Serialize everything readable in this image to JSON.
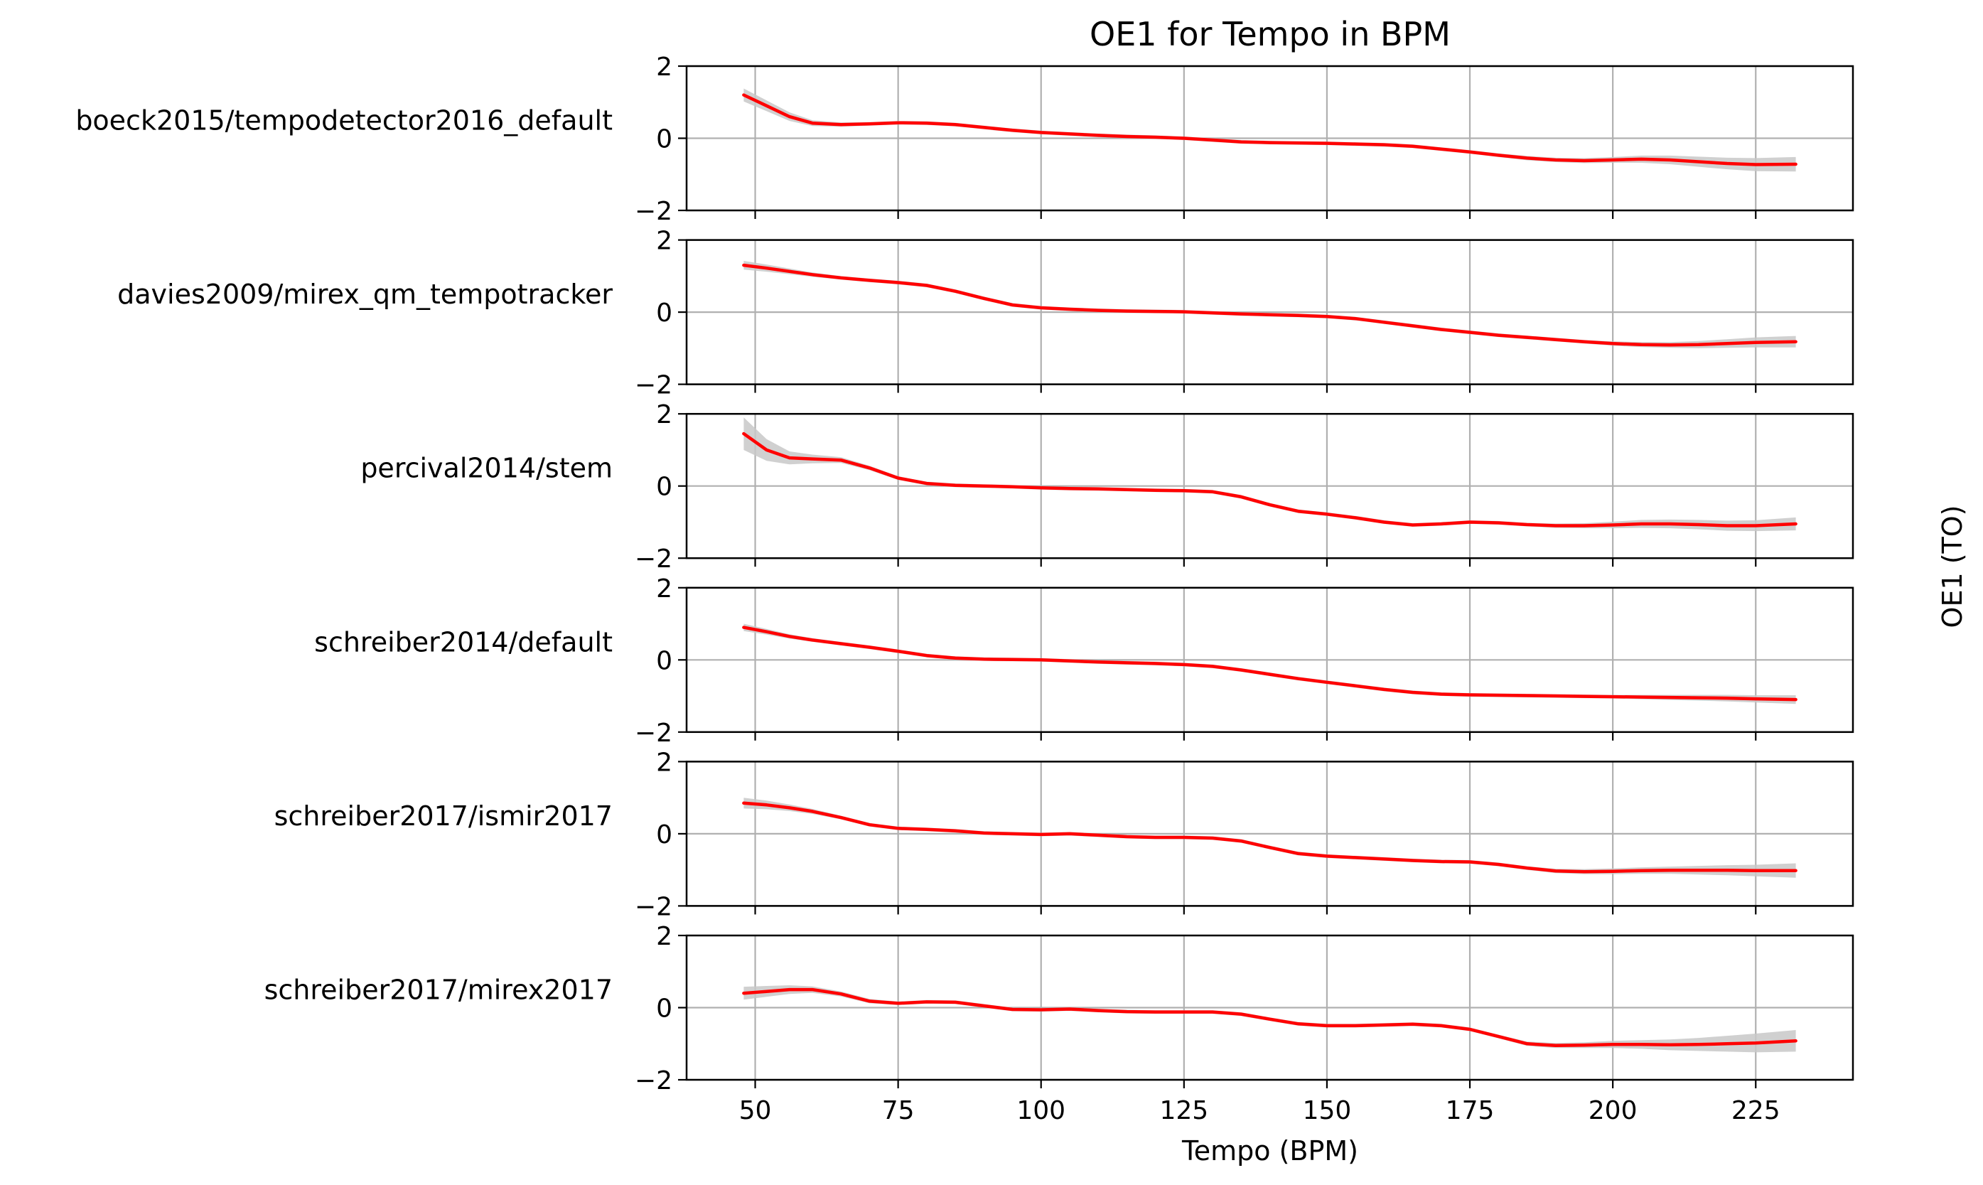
{
  "chart_data": {
    "type": "line",
    "title": "OE1 for Tempo in BPM",
    "xlabel": "Tempo (BPM)",
    "ylabel": "OE1 (TO)",
    "xlim": [
      38,
      242
    ],
    "ylim": [
      -2,
      2
    ],
    "xticks": [
      50,
      75,
      100,
      125,
      150,
      175,
      200,
      225
    ],
    "yticks": [
      2,
      0,
      -2
    ],
    "ytick_labels": [
      "2",
      "0",
      "−2"
    ],
    "grid": true,
    "line_color": "#ff0000",
    "band_color": "#c8c8c8",
    "x": [
      48,
      52,
      56,
      60,
      65,
      70,
      75,
      80,
      85,
      90,
      95,
      100,
      105,
      110,
      115,
      120,
      125,
      130,
      135,
      140,
      145,
      150,
      155,
      160,
      165,
      170,
      175,
      180,
      185,
      190,
      195,
      200,
      205,
      210,
      215,
      220,
      225,
      232
    ],
    "series": [
      {
        "name": "boeck2015/tempodetector2016_default",
        "values": [
          1.2,
          0.9,
          0.6,
          0.42,
          0.38,
          0.4,
          0.43,
          0.42,
          0.38,
          0.3,
          0.22,
          0.16,
          0.12,
          0.08,
          0.05,
          0.03,
          0.0,
          -0.05,
          -0.1,
          -0.12,
          -0.13,
          -0.14,
          -0.16,
          -0.18,
          -0.22,
          -0.3,
          -0.38,
          -0.47,
          -0.55,
          -0.6,
          -0.62,
          -0.6,
          -0.58,
          -0.6,
          -0.65,
          -0.7,
          -0.73,
          -0.72
        ],
        "band": [
          0.18,
          0.15,
          0.12,
          0.08,
          0.06,
          0.05,
          0.05,
          0.05,
          0.05,
          0.05,
          0.05,
          0.05,
          0.05,
          0.05,
          0.05,
          0.05,
          0.05,
          0.05,
          0.05,
          0.05,
          0.05,
          0.05,
          0.05,
          0.05,
          0.05,
          0.05,
          0.05,
          0.05,
          0.06,
          0.06,
          0.07,
          0.08,
          0.1,
          0.12,
          0.14,
          0.16,
          0.18,
          0.2
        ]
      },
      {
        "name": "davies2009/mirex_qm_tempotracker",
        "values": [
          1.3,
          1.22,
          1.13,
          1.04,
          0.95,
          0.88,
          0.82,
          0.74,
          0.58,
          0.38,
          0.2,
          0.12,
          0.08,
          0.05,
          0.03,
          0.02,
          0.01,
          -0.02,
          -0.05,
          -0.07,
          -0.09,
          -0.12,
          -0.18,
          -0.28,
          -0.38,
          -0.48,
          -0.56,
          -0.64,
          -0.7,
          -0.76,
          -0.82,
          -0.87,
          -0.9,
          -0.91,
          -0.9,
          -0.87,
          -0.84,
          -0.82
        ],
        "band": [
          0.12,
          0.1,
          0.08,
          0.06,
          0.05,
          0.05,
          0.05,
          0.05,
          0.05,
          0.05,
          0.05,
          0.05,
          0.05,
          0.05,
          0.05,
          0.05,
          0.05,
          0.05,
          0.05,
          0.05,
          0.05,
          0.05,
          0.05,
          0.05,
          0.05,
          0.05,
          0.05,
          0.05,
          0.05,
          0.05,
          0.05,
          0.06,
          0.07,
          0.08,
          0.1,
          0.12,
          0.14,
          0.16
        ]
      },
      {
        "name": "percival2014/stem",
        "values": [
          1.45,
          1.0,
          0.78,
          0.75,
          0.72,
          0.5,
          0.22,
          0.07,
          0.02,
          0.0,
          -0.02,
          -0.05,
          -0.07,
          -0.08,
          -0.1,
          -0.12,
          -0.13,
          -0.16,
          -0.3,
          -0.52,
          -0.7,
          -0.78,
          -0.88,
          -1.0,
          -1.08,
          -1.05,
          -1.0,
          -1.02,
          -1.07,
          -1.1,
          -1.1,
          -1.08,
          -1.05,
          -1.05,
          -1.07,
          -1.1,
          -1.1,
          -1.05
        ],
        "band": [
          0.45,
          0.3,
          0.18,
          0.12,
          0.08,
          0.06,
          0.05,
          0.05,
          0.05,
          0.05,
          0.05,
          0.05,
          0.05,
          0.05,
          0.05,
          0.05,
          0.05,
          0.05,
          0.05,
          0.05,
          0.05,
          0.05,
          0.05,
          0.05,
          0.05,
          0.05,
          0.05,
          0.05,
          0.05,
          0.06,
          0.07,
          0.09,
          0.11,
          0.12,
          0.13,
          0.14,
          0.15,
          0.18
        ]
      },
      {
        "name": "schreiber2014/default",
        "values": [
          0.9,
          0.78,
          0.65,
          0.55,
          0.45,
          0.35,
          0.24,
          0.12,
          0.05,
          0.02,
          0.01,
          0.0,
          -0.03,
          -0.06,
          -0.08,
          -0.1,
          -0.13,
          -0.18,
          -0.28,
          -0.4,
          -0.52,
          -0.62,
          -0.72,
          -0.82,
          -0.9,
          -0.95,
          -0.97,
          -0.98,
          -0.99,
          -1.0,
          -1.01,
          -1.02,
          -1.03,
          -1.04,
          -1.05,
          -1.06,
          -1.08,
          -1.1
        ],
        "band": [
          0.1,
          0.08,
          0.06,
          0.05,
          0.05,
          0.05,
          0.05,
          0.05,
          0.05,
          0.05,
          0.05,
          0.05,
          0.05,
          0.05,
          0.05,
          0.05,
          0.05,
          0.05,
          0.05,
          0.05,
          0.05,
          0.05,
          0.05,
          0.05,
          0.05,
          0.05,
          0.05,
          0.05,
          0.05,
          0.05,
          0.05,
          0.05,
          0.06,
          0.07,
          0.08,
          0.09,
          0.1,
          0.12
        ]
      },
      {
        "name": "schreiber2017/ismir2017",
        "values": [
          0.85,
          0.8,
          0.72,
          0.62,
          0.45,
          0.25,
          0.15,
          0.12,
          0.08,
          0.02,
          0.0,
          -0.02,
          0.0,
          -0.04,
          -0.08,
          -0.1,
          -0.1,
          -0.12,
          -0.2,
          -0.38,
          -0.55,
          -0.62,
          -0.66,
          -0.7,
          -0.74,
          -0.77,
          -0.78,
          -0.85,
          -0.95,
          -1.03,
          -1.05,
          -1.04,
          -1.02,
          -1.01,
          -1.01,
          -1.01,
          -1.02,
          -1.02
        ],
        "band": [
          0.15,
          0.12,
          0.09,
          0.07,
          0.05,
          0.05,
          0.05,
          0.05,
          0.05,
          0.05,
          0.05,
          0.05,
          0.05,
          0.05,
          0.05,
          0.05,
          0.05,
          0.05,
          0.05,
          0.05,
          0.05,
          0.05,
          0.05,
          0.05,
          0.05,
          0.05,
          0.05,
          0.05,
          0.05,
          0.06,
          0.07,
          0.08,
          0.09,
          0.1,
          0.12,
          0.14,
          0.16,
          0.2
        ]
      },
      {
        "name": "schreiber2017/mirex2017",
        "values": [
          0.4,
          0.45,
          0.5,
          0.5,
          0.38,
          0.18,
          0.12,
          0.16,
          0.15,
          0.05,
          -0.05,
          -0.06,
          -0.04,
          -0.08,
          -0.11,
          -0.12,
          -0.12,
          -0.12,
          -0.18,
          -0.32,
          -0.45,
          -0.5,
          -0.5,
          -0.48,
          -0.46,
          -0.5,
          -0.6,
          -0.8,
          -1.0,
          -1.05,
          -1.04,
          -1.02,
          -1.02,
          -1.03,
          -1.02,
          -1.0,
          -0.98,
          -0.92
        ],
        "band": [
          0.18,
          0.15,
          0.12,
          0.09,
          0.07,
          0.06,
          0.05,
          0.05,
          0.05,
          0.05,
          0.05,
          0.05,
          0.05,
          0.05,
          0.05,
          0.05,
          0.05,
          0.05,
          0.05,
          0.05,
          0.05,
          0.05,
          0.05,
          0.05,
          0.05,
          0.05,
          0.05,
          0.05,
          0.06,
          0.07,
          0.08,
          0.1,
          0.12,
          0.15,
          0.18,
          0.22,
          0.26,
          0.3
        ]
      }
    ]
  }
}
